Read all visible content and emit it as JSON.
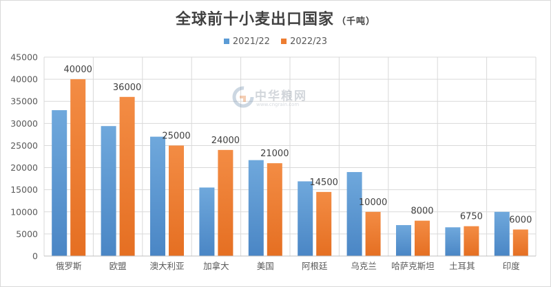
{
  "title": "全球前十小麦出口国家",
  "title_unit": "（千吨）",
  "watermark": {
    "text": "中华粮网",
    "sub": "www.cngrain.com"
  },
  "colors": {
    "series1": "#5b9bd5",
    "series2": "#ed7d31",
    "grid": "#d9d9d9",
    "axis_text": "#595959",
    "label_text": "#404040"
  },
  "chart_data": {
    "type": "bar",
    "categories": [
      "俄罗斯",
      "欧盟",
      "澳大利亚",
      "加拿大",
      "美国",
      "阿根廷",
      "乌克兰",
      "哈萨克斯坦",
      "土耳其",
      "印度"
    ],
    "series": [
      {
        "name": "2021/22",
        "values": [
          33000,
          29400,
          27000,
          15500,
          21700,
          16900,
          19000,
          7000,
          6500,
          10000
        ],
        "labels": null
      },
      {
        "name": "2022/23",
        "values": [
          40000,
          36000,
          25000,
          24000,
          21000,
          14500,
          10000,
          8000,
          6750,
          6000
        ],
        "labels": [
          "40000",
          "36000",
          "25000",
          "24000",
          "21000",
          "14500",
          "10000",
          "8000",
          "6750",
          "6000"
        ]
      }
    ],
    "ylim": [
      0,
      45000
    ],
    "yticks": [
      "0",
      "5000",
      "10000",
      "15000",
      "20000",
      "25000",
      "30000",
      "35000",
      "40000",
      "45000"
    ],
    "grid": true,
    "legend_position": "top"
  }
}
